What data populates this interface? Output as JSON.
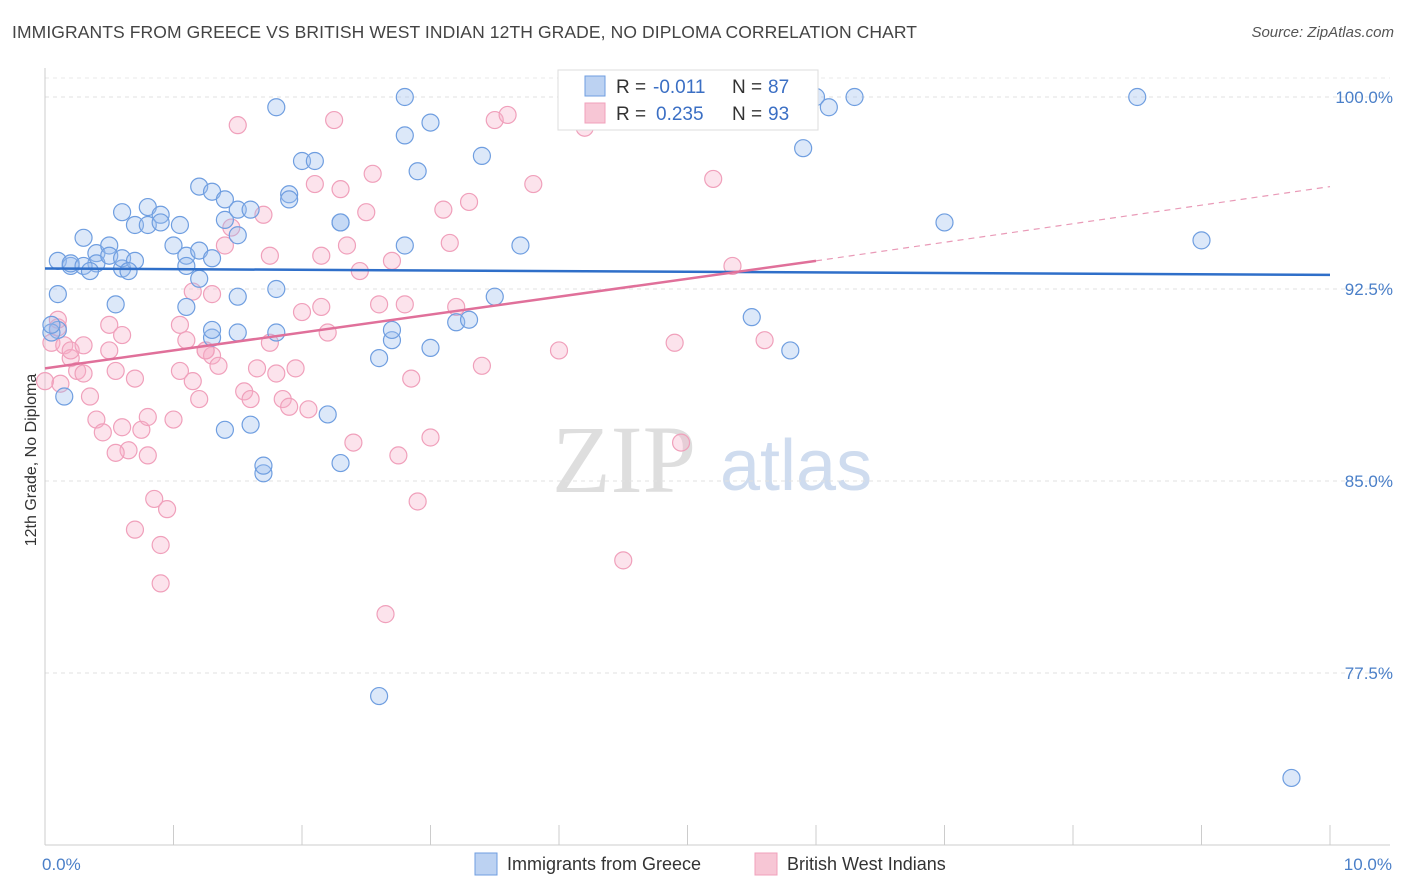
{
  "title": "IMMIGRANTS FROM GREECE VS BRITISH WEST INDIAN 12TH GRADE, NO DIPLOMA CORRELATION CHART",
  "source": "Source: ZipAtlas.com",
  "watermark": {
    "zip": "ZIP",
    "atlas": "atlas"
  },
  "colors": {
    "blue": "#6f9ee0",
    "pink": "#f0a0bb",
    "blue_line": "#2f6fc9",
    "pink_line": "#e0709a"
  },
  "legend_top": {
    "rows": [
      {
        "r_label": "R = ",
        "r_value": "-0.011",
        "n_label": "N = ",
        "n_value": "87"
      },
      {
        "r_label": "R = ",
        "r_value": "0.235",
        "n_label": "N = ",
        "n_value": "93"
      }
    ]
  },
  "chart_data": {
    "type": "scatter",
    "xlabel": "",
    "ylabel": "12th Grade, No Diploma",
    "xlim": [
      0,
      10
    ],
    "ylim": [
      71.5,
      101.5
    ],
    "x_tick_labels": [
      {
        "v": 0,
        "label": "0.0%"
      },
      {
        "v": 10,
        "label": "10.0%"
      }
    ],
    "y_ticks": [
      {
        "v": 100,
        "label": "100.0%"
      },
      {
        "v": 92.5,
        "label": "92.5%"
      },
      {
        "v": 85,
        "label": "85.0%"
      },
      {
        "v": 77.5,
        "label": "77.5%"
      }
    ],
    "grid": "horizontal dashed",
    "series": [
      {
        "name": "Immigrants from Greece",
        "color": "#6f9ee0",
        "points": [
          [
            0.1,
            90.9
          ],
          [
            0.1,
            92.3
          ],
          [
            0.1,
            93.6
          ],
          [
            0.2,
            93.4
          ],
          [
            0.3,
            94.5
          ],
          [
            0.4,
            93.9
          ],
          [
            0.4,
            93.5
          ],
          [
            0.5,
            94.2
          ],
          [
            0.5,
            93.8
          ],
          [
            0.6,
            93.3
          ],
          [
            0.6,
            93.7
          ],
          [
            0.6,
            95.5
          ],
          [
            0.7,
            95.0
          ],
          [
            0.7,
            93.6
          ],
          [
            0.8,
            95.0
          ],
          [
            0.8,
            95.7
          ],
          [
            0.9,
            95.4
          ],
          [
            0.9,
            95.1
          ],
          [
            1.0,
            94.2
          ],
          [
            1.1,
            93.8
          ],
          [
            1.1,
            93.4
          ],
          [
            1.1,
            91.8
          ],
          [
            1.2,
            92.9
          ],
          [
            1.2,
            94.0
          ],
          [
            1.2,
            96.5
          ],
          [
            1.3,
            93.7
          ],
          [
            1.3,
            90.6
          ],
          [
            1.3,
            90.9
          ],
          [
            1.3,
            96.3
          ],
          [
            1.4,
            95.2
          ],
          [
            1.4,
            96.0
          ],
          [
            1.4,
            87.0
          ],
          [
            1.5,
            90.8
          ],
          [
            1.5,
            92.2
          ],
          [
            1.5,
            94.6
          ],
          [
            1.5,
            95.6
          ],
          [
            1.6,
            87.2
          ],
          [
            1.6,
            95.6
          ],
          [
            1.7,
            85.3
          ],
          [
            1.7,
            85.6
          ],
          [
            1.8,
            90.8
          ],
          [
            1.8,
            92.5
          ],
          [
            1.8,
            99.6
          ],
          [
            1.9,
            96.2
          ],
          [
            1.9,
            96.0
          ],
          [
            2.0,
            97.5
          ],
          [
            2.1,
            97.5
          ],
          [
            2.2,
            87.6
          ],
          [
            2.3,
            85.7
          ],
          [
            2.3,
            95.1
          ],
          [
            2.3,
            95.1
          ],
          [
            2.6,
            76.6
          ],
          [
            2.6,
            89.8
          ],
          [
            2.7,
            90.5
          ],
          [
            2.7,
            90.9
          ],
          [
            2.8,
            100.0
          ],
          [
            2.8,
            98.5
          ],
          [
            2.8,
            94.2
          ],
          [
            2.9,
            97.1
          ],
          [
            3.0,
            99.0
          ],
          [
            3.0,
            90.2
          ],
          [
            3.2,
            91.2
          ],
          [
            3.3,
            91.3
          ],
          [
            3.4,
            97.7
          ],
          [
            3.5,
            92.2
          ],
          [
            3.7,
            94.2
          ],
          [
            4.1,
            100.0
          ],
          [
            4.4,
            100.0
          ],
          [
            5.5,
            91.4
          ],
          [
            5.8,
            90.1
          ],
          [
            6.0,
            100.0
          ],
          [
            6.3,
            100.0
          ],
          [
            7.0,
            95.1
          ],
          [
            8.5,
            100.0
          ],
          [
            9.0,
            94.4
          ],
          [
            9.7,
            73.4
          ],
          [
            0.05,
            90.8
          ],
          [
            0.05,
            91.1
          ],
          [
            0.15,
            88.3
          ],
          [
            0.2,
            93.5
          ],
          [
            0.3,
            93.4
          ],
          [
            0.35,
            93.2
          ],
          [
            0.55,
            91.9
          ],
          [
            0.65,
            93.2
          ],
          [
            1.05,
            95.0
          ],
          [
            6.1,
            99.6
          ],
          [
            5.9,
            98.0
          ]
        ]
      },
      {
        "name": "British West Indians",
        "color": "#f0a0bb",
        "points": [
          [
            0.0,
            88.9
          ],
          [
            0.05,
            90.4
          ],
          [
            0.1,
            91.0
          ],
          [
            0.1,
            91.3
          ],
          [
            0.15,
            90.3
          ],
          [
            0.2,
            89.8
          ],
          [
            0.2,
            90.1
          ],
          [
            0.25,
            89.3
          ],
          [
            0.3,
            89.2
          ],
          [
            0.35,
            88.3
          ],
          [
            0.4,
            87.4
          ],
          [
            0.45,
            86.9
          ],
          [
            0.5,
            91.1
          ],
          [
            0.5,
            90.1
          ],
          [
            0.55,
            89.3
          ],
          [
            0.6,
            87.1
          ],
          [
            0.6,
            90.7
          ],
          [
            0.65,
            86.2
          ],
          [
            0.7,
            83.1
          ],
          [
            0.7,
            89.0
          ],
          [
            0.75,
            87.0
          ],
          [
            0.8,
            87.5
          ],
          [
            0.85,
            84.3
          ],
          [
            0.9,
            81.0
          ],
          [
            0.9,
            82.5
          ],
          [
            0.95,
            83.9
          ],
          [
            1.0,
            87.4
          ],
          [
            1.05,
            89.3
          ],
          [
            1.05,
            91.1
          ],
          [
            1.1,
            90.5
          ],
          [
            1.15,
            88.9
          ],
          [
            1.2,
            88.2
          ],
          [
            1.25,
            90.1
          ],
          [
            1.3,
            92.3
          ],
          [
            1.3,
            89.9
          ],
          [
            1.35,
            89.5
          ],
          [
            1.4,
            94.2
          ],
          [
            1.45,
            94.9
          ],
          [
            1.5,
            98.9
          ],
          [
            1.55,
            88.5
          ],
          [
            1.6,
            88.2
          ],
          [
            1.65,
            89.4
          ],
          [
            1.7,
            95.4
          ],
          [
            1.75,
            93.8
          ],
          [
            1.8,
            89.2
          ],
          [
            1.85,
            88.2
          ],
          [
            1.9,
            87.9
          ],
          [
            1.95,
            89.4
          ],
          [
            2.0,
            91.6
          ],
          [
            2.05,
            87.8
          ],
          [
            2.1,
            96.6
          ],
          [
            2.15,
            93.8
          ],
          [
            2.2,
            90.8
          ],
          [
            2.25,
            99.1
          ],
          [
            2.3,
            96.4
          ],
          [
            2.35,
            94.2
          ],
          [
            2.4,
            86.5
          ],
          [
            2.45,
            93.2
          ],
          [
            2.5,
            95.5
          ],
          [
            2.55,
            97.0
          ],
          [
            2.6,
            91.9
          ],
          [
            2.65,
            79.8
          ],
          [
            2.7,
            93.6
          ],
          [
            2.75,
            86.0
          ],
          [
            2.8,
            91.9
          ],
          [
            2.85,
            89.0
          ],
          [
            2.9,
            84.2
          ],
          [
            3.0,
            86.7
          ],
          [
            3.1,
            95.6
          ],
          [
            3.15,
            94.3
          ],
          [
            3.2,
            91.8
          ],
          [
            3.3,
            95.9
          ],
          [
            3.4,
            89.5
          ],
          [
            3.5,
            99.1
          ],
          [
            3.6,
            99.3
          ],
          [
            3.8,
            96.6
          ],
          [
            4.0,
            90.1
          ],
          [
            4.2,
            98.8
          ],
          [
            4.3,
            99.5
          ],
          [
            4.5,
            81.9
          ],
          [
            4.9,
            90.4
          ],
          [
            4.95,
            86.5
          ],
          [
            5.2,
            96.8
          ],
          [
            5.35,
            93.4
          ],
          [
            5.6,
            90.5
          ],
          [
            0.12,
            88.8
          ],
          [
            0.3,
            90.3
          ],
          [
            0.55,
            86.1
          ],
          [
            1.15,
            92.4
          ],
          [
            1.75,
            90.4
          ],
          [
            2.15,
            91.8
          ],
          [
            0.8,
            86.0
          ],
          [
            1.25,
            90.1
          ]
        ]
      }
    ],
    "trend_lines": [
      {
        "series": "Immigrants from Greece",
        "x": [
          0,
          10
        ],
        "y": [
          93.3,
          93.05
        ]
      },
      {
        "series": "British West Indians",
        "x": [
          0,
          6,
          10
        ],
        "y": [
          89.4,
          93.6,
          96.5
        ]
      }
    ]
  },
  "legend_bottom": [
    {
      "label": "Immigrants from Greece",
      "color": "#6f9ee0"
    },
    {
      "label": "British West Indians",
      "color": "#f0a0bb"
    }
  ]
}
